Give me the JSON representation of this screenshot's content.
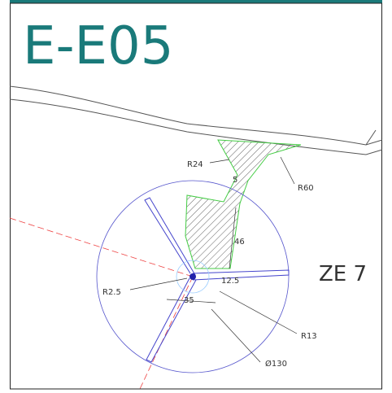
{
  "title": "E-E05",
  "zone_label": "ZE 7",
  "dimensions": {
    "r24": "R24",
    "gap": "5",
    "r60": "R60",
    "height": "46",
    "r2_5": "R2.5",
    "offset": "12.5",
    "width": "35",
    "r13": "R13",
    "diameter": "Ø130"
  }
}
